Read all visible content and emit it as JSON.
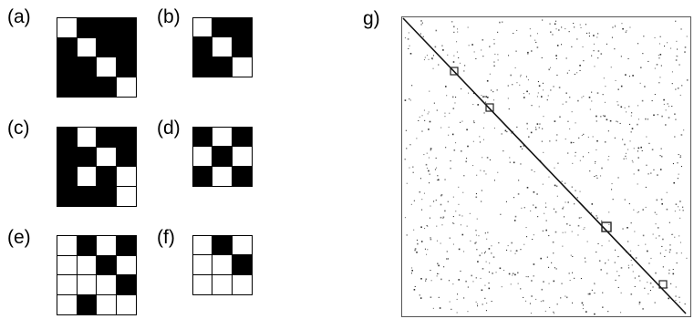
{
  "panels": [
    {
      "label": "(a)",
      "rows": [
        [
          0,
          1,
          1,
          1
        ],
        [
          1,
          0,
          1,
          1
        ],
        [
          1,
          1,
          0,
          1
        ],
        [
          1,
          1,
          1,
          0
        ]
      ]
    },
    {
      "label": "(b)",
      "rows": [
        [
          0,
          1,
          1
        ],
        [
          1,
          0,
          1
        ],
        [
          1,
          1,
          0
        ]
      ]
    },
    {
      "label": "(c)",
      "rows": [
        [
          1,
          0,
          1,
          1
        ],
        [
          1,
          1,
          0,
          1
        ],
        [
          1,
          0,
          1,
          0
        ],
        [
          1,
          1,
          1,
          0
        ]
      ]
    },
    {
      "label": "(d)",
      "rows": [
        [
          1,
          0,
          1
        ],
        [
          0,
          1,
          0
        ],
        [
          1,
          0,
          1
        ]
      ]
    },
    {
      "label": "(e)",
      "rows": [
        [
          0,
          1,
          0,
          1
        ],
        [
          0,
          0,
          1,
          0
        ],
        [
          0,
          0,
          0,
          1
        ],
        [
          0,
          1,
          0,
          0
        ]
      ]
    },
    {
      "label": "(f)",
      "rows": [
        [
          0,
          1,
          0
        ],
        [
          0,
          0,
          1
        ],
        [
          0,
          0,
          0
        ]
      ]
    }
  ],
  "sparse_plot": {
    "label": "g)",
    "description_marks": "random scattered points with strong main diagonal"
  }
}
